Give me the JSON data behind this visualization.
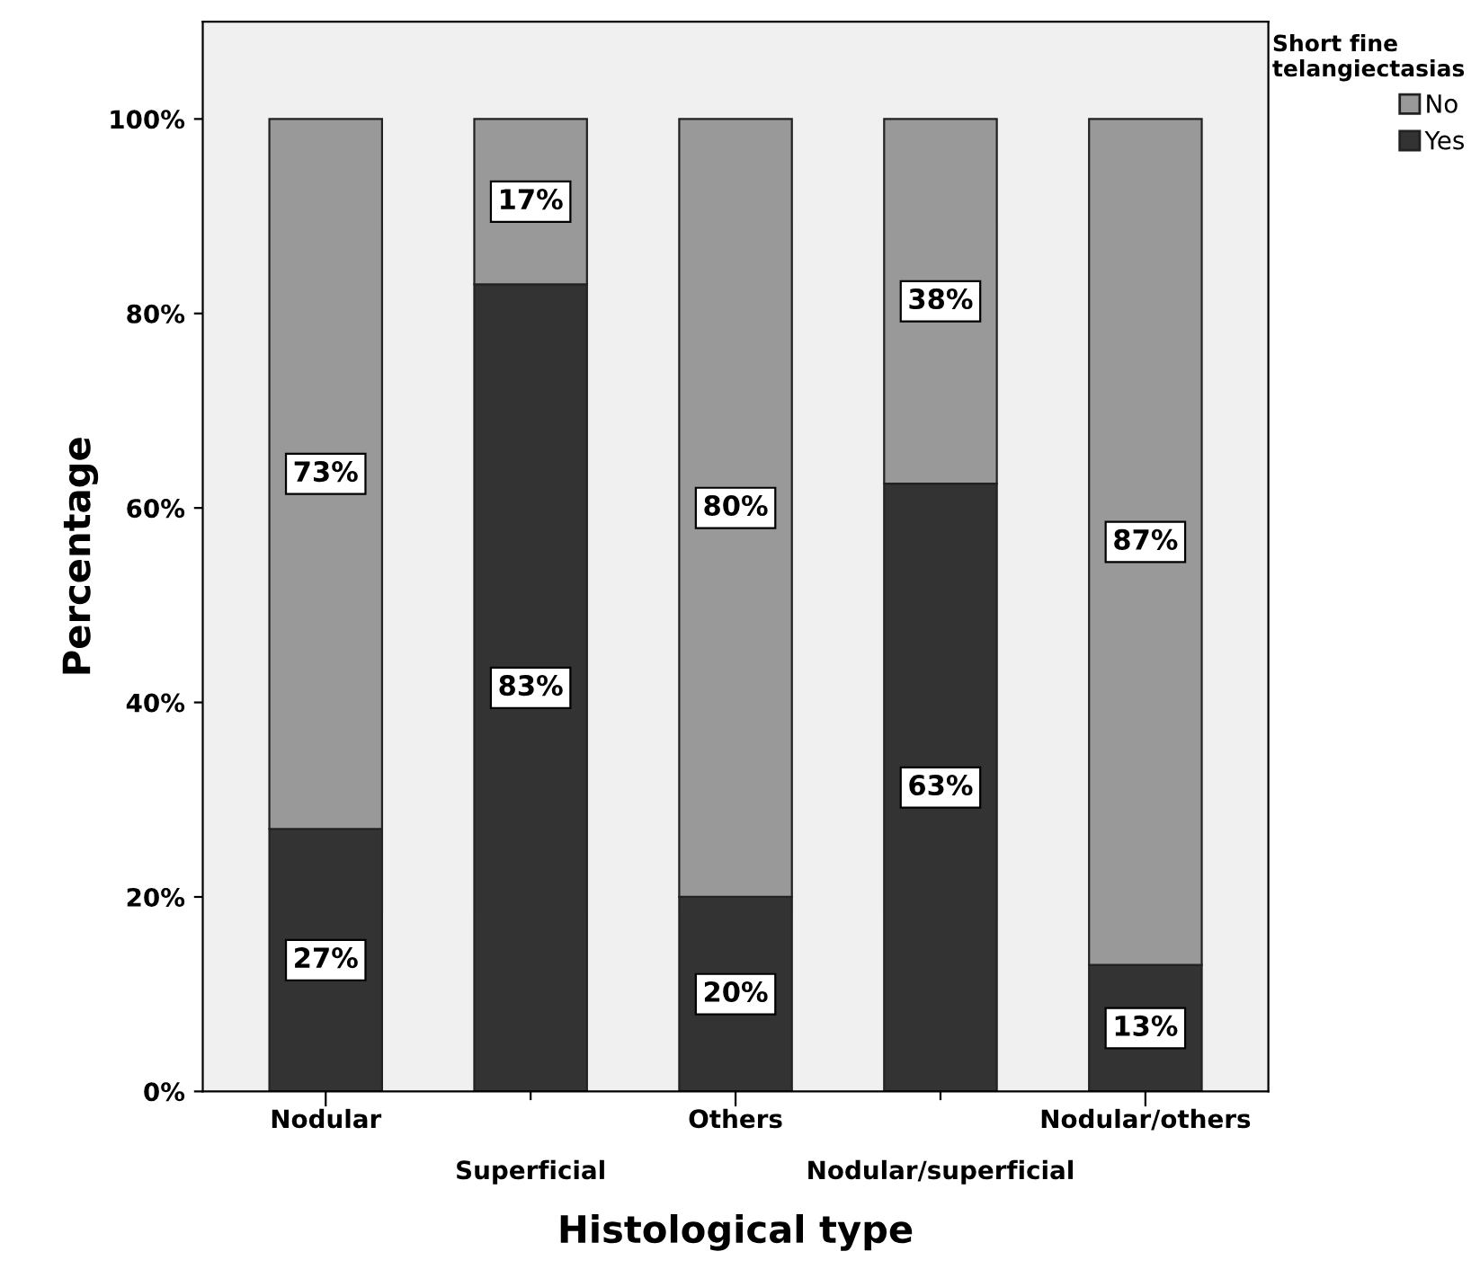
{
  "chart_data": {
    "type": "bar",
    "stacked": true,
    "xlabel": "Histological type",
    "ylabel": "Percentage",
    "legend_title": "Short fine\ntelangiectasias",
    "legend": "top right",
    "categories": [
      "Nodular",
      "Superficial",
      "Others",
      "Nodular/superficial",
      "Nodular/others"
    ],
    "series": [
      {
        "name": "Yes",
        "color": "#333333",
        "values": [
          27,
          83,
          20,
          62.5,
          13
        ],
        "value_labels": [
          "27%",
          "83%",
          "20%",
          "63%",
          "13%"
        ]
      },
      {
        "name": "No",
        "color": "#999999",
        "values": [
          73,
          17,
          80,
          37.5,
          87
        ],
        "value_labels": [
          "73%",
          "17%",
          "80%",
          "38%",
          "87%"
        ]
      }
    ],
    "ylim": [
      0,
      110
    ],
    "yticks": [
      {
        "value": 0,
        "label": "0%"
      },
      {
        "value": 20,
        "label": "20%"
      },
      {
        "value": 40,
        "label": "40%"
      },
      {
        "value": 60,
        "label": "60%"
      },
      {
        "value": 80,
        "label": "80%"
      },
      {
        "value": 100,
        "label": "100%"
      }
    ],
    "grid": false
  }
}
